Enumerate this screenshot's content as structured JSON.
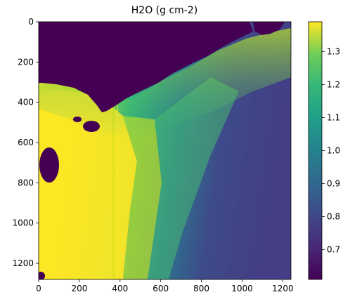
{
  "chart_data": {
    "type": "heatmap",
    "title": "H2O (g cm-2)",
    "xlabel": "",
    "ylabel": "",
    "xlim": [
      0,
      1240
    ],
    "ylim": [
      1280,
      0
    ],
    "x_ticks": [
      0,
      200,
      400,
      600,
      800,
      1000,
      1200
    ],
    "y_ticks": [
      0,
      200,
      400,
      600,
      800,
      1000,
      1200
    ],
    "colorbar": {
      "min": 0.61,
      "max": 1.39,
      "ticks": [
        0.7,
        0.8,
        0.9,
        1.0,
        1.1,
        1.2,
        1.3
      ],
      "tick_labels": [
        "0.7",
        "0.8",
        "0.9",
        "1.0",
        "1.1",
        "1.2",
        "1.3"
      ],
      "colormap": "viridis"
    },
    "grid": false,
    "regions": [
      {
        "name": "dark-masked-area-top-left",
        "value": 0.62
      },
      {
        "name": "bright-area-left",
        "value": 1.38
      },
      {
        "name": "gradient-area-right",
        "value_range": [
          0.8,
          1.2
        ]
      }
    ]
  }
}
